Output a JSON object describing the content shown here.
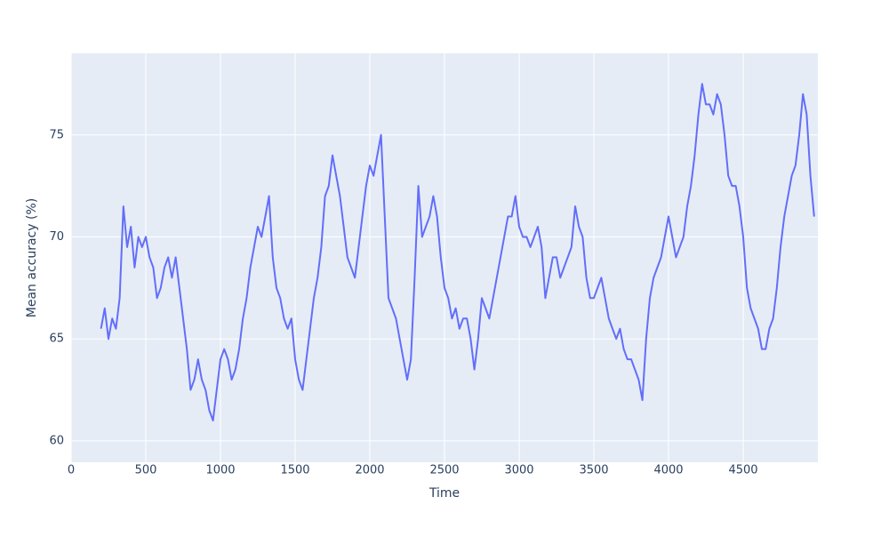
{
  "chart_data": {
    "type": "line",
    "x_label": "Time",
    "y_label": "Mean accuracy (%)",
    "color": "#636efa",
    "grid": true,
    "xlim": [
      0,
      5000
    ],
    "ylim": [
      58.95,
      79
    ],
    "xticks": [
      0,
      500,
      1000,
      1500,
      2000,
      2500,
      3000,
      3500,
      4000,
      4500
    ],
    "yticks": [
      60,
      65,
      70,
      75
    ],
    "x": [
      200,
      225,
      250,
      275,
      300,
      325,
      350,
      375,
      400,
      425,
      450,
      475,
      500,
      525,
      550,
      575,
      600,
      625,
      650,
      675,
      700,
      725,
      750,
      775,
      800,
      825,
      850,
      875,
      900,
      925,
      950,
      975,
      1000,
      1025,
      1050,
      1075,
      1100,
      1125,
      1150,
      1175,
      1200,
      1225,
      1250,
      1275,
      1300,
      1325,
      1350,
      1375,
      1400,
      1425,
      1450,
      1475,
      1500,
      1525,
      1550,
      1575,
      1600,
      1625,
      1650,
      1675,
      1700,
      1725,
      1750,
      1775,
      1800,
      1825,
      1850,
      1875,
      1900,
      1925,
      1950,
      1975,
      2000,
      2025,
      2050,
      2075,
      2100,
      2125,
      2150,
      2175,
      2200,
      2225,
      2250,
      2275,
      2300,
      2325,
      2350,
      2375,
      2400,
      2425,
      2450,
      2475,
      2500,
      2525,
      2550,
      2575,
      2600,
      2625,
      2650,
      2675,
      2700,
      2725,
      2750,
      2775,
      2800,
      2825,
      2850,
      2875,
      2900,
      2925,
      2950,
      2975,
      3000,
      3025,
      3050,
      3075,
      3100,
      3125,
      3150,
      3175,
      3200,
      3225,
      3250,
      3275,
      3300,
      3325,
      3350,
      3375,
      3400,
      3425,
      3450,
      3475,
      3500,
      3525,
      3550,
      3575,
      3600,
      3625,
      3650,
      3675,
      3700,
      3725,
      3750,
      3775,
      3800,
      3825,
      3850,
      3875,
      3900,
      3925,
      3950,
      3975,
      4000,
      4025,
      4050,
      4075,
      4100,
      4125,
      4150,
      4175,
      4200,
      4225,
      4250,
      4275,
      4300,
      4325,
      4350,
      4375,
      4400,
      4425,
      4450,
      4475,
      4500,
      4525,
      4550,
      4575,
      4600,
      4625,
      4650,
      4675,
      4700,
      4725,
      4750,
      4775,
      4800,
      4825,
      4850,
      4875,
      4900,
      4925,
      4950,
      4975
    ],
    "values": [
      65.5,
      66.5,
      65,
      66,
      65.5,
      67,
      71.5,
      69.5,
      70.5,
      68.5,
      70,
      69.5,
      70,
      69,
      68.5,
      67,
      67.5,
      68.5,
      69,
      68,
      69,
      67.5,
      66,
      64.5,
      62.5,
      63,
      64,
      63,
      62.5,
      61.5,
      61,
      62.5,
      64,
      64.5,
      64,
      63,
      63.5,
      64.5,
      66,
      67,
      68.5,
      69.5,
      70.5,
      70,
      71,
      72,
      69,
      67.5,
      67,
      66,
      65.5,
      66,
      64,
      63,
      62.5,
      64,
      65.5,
      67,
      68,
      69.5,
      72,
      72.5,
      74,
      73,
      72,
      70.5,
      69,
      68.5,
      68,
      69.5,
      71,
      72.5,
      73.5,
      73,
      74,
      75,
      71,
      67,
      66.5,
      66,
      65,
      64,
      63,
      64,
      68,
      72.5,
      70,
      70.5,
      71,
      72,
      71,
      69,
      67.5,
      67,
      66,
      66.5,
      65.5,
      66,
      66,
      65,
      63.5,
      65,
      67,
      66.5,
      66,
      67,
      68,
      69,
      70,
      71,
      71,
      72,
      70.5,
      70,
      70,
      69.5,
      70,
      70.5,
      69.5,
      67,
      68,
      69,
      69,
      68,
      68.5,
      69,
      69.5,
      71.5,
      70.5,
      70,
      68,
      67,
      67,
      67.5,
      68,
      67,
      66,
      65.5,
      65,
      65.5,
      64.5,
      64,
      64,
      63.5,
      63,
      62,
      65,
      67,
      68,
      68.5,
      69,
      70,
      71,
      70,
      69,
      69.5,
      70,
      71.5,
      72.5,
      74,
      76,
      77.5,
      76.5,
      76.5,
      76,
      77,
      76.5,
      75,
      73,
      72.5,
      72.5,
      71.5,
      70,
      67.5,
      66.5,
      66,
      65.5,
      64.5,
      64.5,
      65.5,
      66,
      67.5,
      69.5,
      71,
      72,
      73,
      73.5,
      75,
      77,
      76,
      73,
      71
    ]
  }
}
